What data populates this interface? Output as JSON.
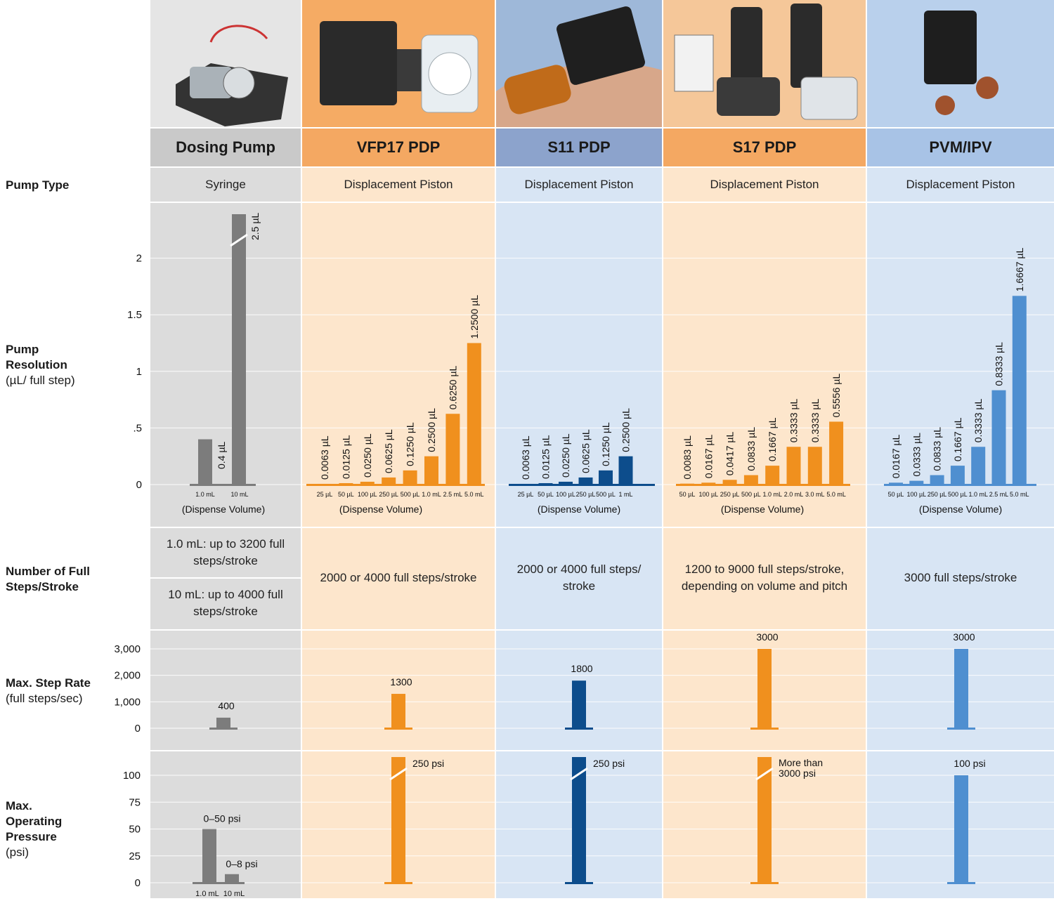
{
  "row_labels": {
    "pump_type": "Pump Type",
    "resolution_bold": "Pump Resolution",
    "resolution_sub": "(µL/ full step)",
    "steps_bold": "Number of Full Steps/Stroke",
    "step_rate_bold": "Max. Step Rate",
    "step_rate_sub": "(full steps/sec)",
    "pressure_bold": "Max. Operating Pressure",
    "pressure_sub": "(psi)"
  },
  "columns": [
    {
      "name": "Dosing Pump",
      "header_bg": "#c9c9c9",
      "image": "dosing-pump-photo",
      "pump_type": "Syringe",
      "steps": [
        "1.0 mL: up to 3200 full steps/stroke",
        "10 mL: up to 4000 full steps/stroke"
      ]
    },
    {
      "name": "VFP17 PDP",
      "header_bg": "#f4a862",
      "image": "vfp17-pump-photo",
      "pump_type": "Displacement Piston",
      "steps": [
        "2000 or 4000 full steps/stroke"
      ]
    },
    {
      "name": "S11 PDP",
      "header_bg": "#8ca3cc",
      "image": "s11-pump-in-hand-photo",
      "pump_type": "Displacement Piston",
      "steps": [
        "2000 or 4000 full steps/ stroke"
      ]
    },
    {
      "name": "S17 PDP",
      "header_bg": "#f4a862",
      "image": "s17-pumps-photo",
      "pump_type": "Displacement Piston",
      "steps": [
        "1200 to 9000 full steps/stroke, depending on volume and pitch"
      ]
    },
    {
      "name": "PVM/IPV",
      "header_bg": "#a8c3e6",
      "image": "pvm-ipv-valve-photo",
      "pump_type": "Displacement Piston",
      "steps": [
        "3000 full steps/stroke"
      ]
    }
  ],
  "colors": {
    "gray": "#7c7c7c",
    "orange": "#f0901e",
    "navy": "#0d4d8c",
    "blue": "#4f8fd0",
    "bg_gray": "#dcdcdc",
    "bg_orange": "#fde6cc",
    "bg_blue": "#d8e5f4"
  },
  "chart_data": [
    {
      "type": "bar",
      "title": "Pump Resolution",
      "ylabel": "(µL/ full step)",
      "xlabel": "(Dispense Volume)",
      "ylim": [
        0,
        2.4
      ],
      "y_ticks": [
        "0",
        ".5",
        "1",
        "1.5",
        "2"
      ],
      "y_tick_values": [
        0,
        0.5,
        1,
        1.5,
        2
      ],
      "groups": [
        {
          "column": "Dosing Pump",
          "color": "gray",
          "categories": [
            "1.0 mL",
            "10 mL"
          ],
          "values": [
            0.4,
            2.5
          ],
          "labels": [
            "0.4 µL",
            "2.5 µL"
          ],
          "broken": [
            false,
            true
          ]
        },
        {
          "column": "VFP17 PDP",
          "color": "orange",
          "categories": [
            "25 µL",
            "50 µL",
            "100 µL",
            "250 µL",
            "500 µL",
            "1.0 mL",
            "2.5 mL",
            "5.0 mL"
          ],
          "values": [
            0.0063,
            0.0125,
            0.025,
            0.0625,
            0.125,
            0.25,
            0.625,
            1.25
          ],
          "labels": [
            "0.0063 µL",
            "0.0125 µL",
            "0.0250 µL",
            "0.0625 µL",
            "0.1250 µL",
            "0.2500 µL",
            "0.6250 µL",
            "1.2500 µL"
          ]
        },
        {
          "column": "S11 PDP",
          "color": "navy",
          "categories": [
            "25 µL",
            "50 µL",
            "100 µL",
            "250 µL",
            "500 µL",
            "1 mL"
          ],
          "values": [
            0.0063,
            0.0125,
            0.025,
            0.0625,
            0.125,
            0.25
          ],
          "labels": [
            "0.0063 µL",
            "0.0125 µL",
            "0.0250 µL",
            "0.0625 µL",
            "0.1250 µL",
            "0.2500 µL"
          ]
        },
        {
          "column": "S17 PDP",
          "color": "orange",
          "categories": [
            "50 µL",
            "100 µL",
            "250 µL",
            "500 µL",
            "1.0 mL",
            "2.0 mL",
            "3.0 mL",
            "5.0 mL"
          ],
          "values": [
            0.0083,
            0.0167,
            0.0417,
            0.0833,
            0.1667,
            0.3333,
            0.3333,
            0.5556
          ],
          "labels": [
            "0.0083 µL",
            "0.0167 µL",
            "0.0417 µL",
            "0.0833 µL",
            "0.1667 µL",
            "0.3333 µL",
            "0.3333 µL",
            "0.5556 µL"
          ]
        },
        {
          "column": "PVM/IPV",
          "color": "blue",
          "categories": [
            "50 µL",
            "100 µL",
            "250 µL",
            "500 µL",
            "1.0 mL",
            "2.5 mL",
            "5.0 mL"
          ],
          "values": [
            0.0167,
            0.0333,
            0.0833,
            0.1667,
            0.3333,
            0.8333,
            1.6667
          ],
          "labels": [
            "0.0167 µL",
            "0.0333 µL",
            "0.0833 µL",
            "0.1667 µL",
            "0.3333 µL",
            "0.8333 µL",
            "1.6667 µL"
          ]
        }
      ]
    },
    {
      "type": "bar",
      "title": "Max. Step Rate",
      "ylabel": "(full steps/sec)",
      "ylim": [
        0,
        3000
      ],
      "y_ticks": [
        "0",
        "1,000",
        "2,000",
        "3,000"
      ],
      "y_tick_values": [
        0,
        1000,
        2000,
        3000
      ],
      "groups": [
        {
          "column": "Dosing Pump",
          "color": "gray",
          "values": [
            400
          ],
          "labels": [
            "400"
          ]
        },
        {
          "column": "VFP17 PDP",
          "color": "orange",
          "values": [
            1300
          ],
          "labels": [
            "1300"
          ]
        },
        {
          "column": "S11 PDP",
          "color": "navy",
          "values": [
            1800
          ],
          "labels": [
            "1800"
          ]
        },
        {
          "column": "S17 PDP",
          "color": "orange",
          "values": [
            3000
          ],
          "labels": [
            "3000"
          ]
        },
        {
          "column": "PVM/IPV",
          "color": "blue",
          "values": [
            3000
          ],
          "labels": [
            "3000"
          ]
        }
      ]
    },
    {
      "type": "bar",
      "title": "Max. Operating Pressure",
      "ylabel": "(psi)",
      "ylim": [
        0,
        100
      ],
      "y_ticks": [
        "0",
        "25",
        "50",
        "75",
        "100"
      ],
      "y_tick_values": [
        0,
        25,
        50,
        75,
        100
      ],
      "groups": [
        {
          "column": "Dosing Pump",
          "color": "gray",
          "categories": [
            "1.0 mL",
            "10 mL"
          ],
          "values": [
            50,
            8
          ],
          "labels": [
            "0–50 psi",
            "0–8 psi"
          ]
        },
        {
          "column": "VFP17 PDP",
          "color": "orange",
          "values": [
            250
          ],
          "labels": [
            "250 psi"
          ],
          "broken": [
            true
          ]
        },
        {
          "column": "S11 PDP",
          "color": "navy",
          "values": [
            250
          ],
          "labels": [
            "250 psi"
          ],
          "broken": [
            true
          ]
        },
        {
          "column": "S17 PDP",
          "color": "orange",
          "values": [
            3000
          ],
          "labels": [
            "More than 3000 psi"
          ],
          "broken": [
            true
          ]
        },
        {
          "column": "PVM/IPV",
          "color": "blue",
          "values": [
            100
          ],
          "labels": [
            "100 psi"
          ]
        }
      ]
    }
  ]
}
